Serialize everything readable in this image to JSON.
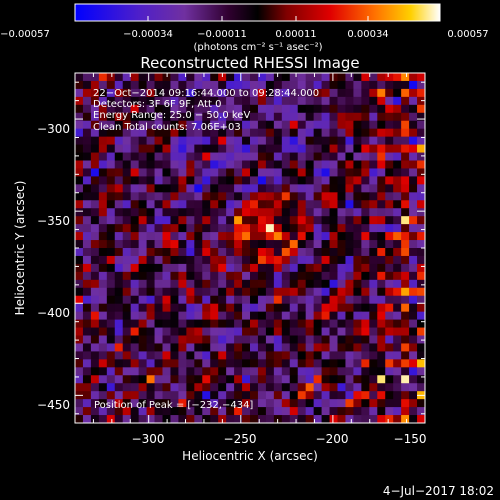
{
  "chart_data": {
    "type": "heatmap",
    "title": "Reconstructed RHESSI Image",
    "xlabel": "Heliocentric X (arcsec)",
    "ylabel": "Heliocentric Y (arcsec)",
    "xlim": [
      -340,
      -150
    ],
    "ylim": [
      -465,
      -275
    ],
    "x_ticks": [
      -300,
      -250,
      -200,
      -150
    ],
    "x_tick_labels": [
      "−300",
      "−250",
      "−200",
      "−150"
    ],
    "y_ticks": [
      -300,
      -350,
      -400,
      -450
    ],
    "y_tick_labels": [
      "−300",
      "−350",
      "−400",
      "−450"
    ],
    "colorbar": {
      "range": [
        -0.00057,
        0.00057
      ],
      "tick_labels": [
        "−0.00057",
        "−0.00034",
        "−0.00011",
        "0.00011",
        "0.00034",
        "0.00057"
      ],
      "unit_label": "(photons cm⁻² s⁻¹ asec⁻²)",
      "colormap": [
        "#0000ff",
        "#5020c8",
        "#7030a0",
        "#300030",
        "#000000",
        "#800000",
        "#e00000",
        "#ff7000",
        "#ffd000",
        "#ffffff"
      ]
    },
    "annotations": [
      "22−Oct−2014 09:16:44.000 to 09:28:44.000",
      "Detectors: 3F 6F 9F, Att 0",
      "Energy Range: 25.0 − 50.0 keV",
      "Clean      Total counts: 7.06E+03"
    ],
    "peak_label": "Position of Peak = [−232,−434]",
    "peak": [
      -232,
      -434
    ]
  },
  "footer": {
    "date": "4−Jul−2017 18:02"
  }
}
